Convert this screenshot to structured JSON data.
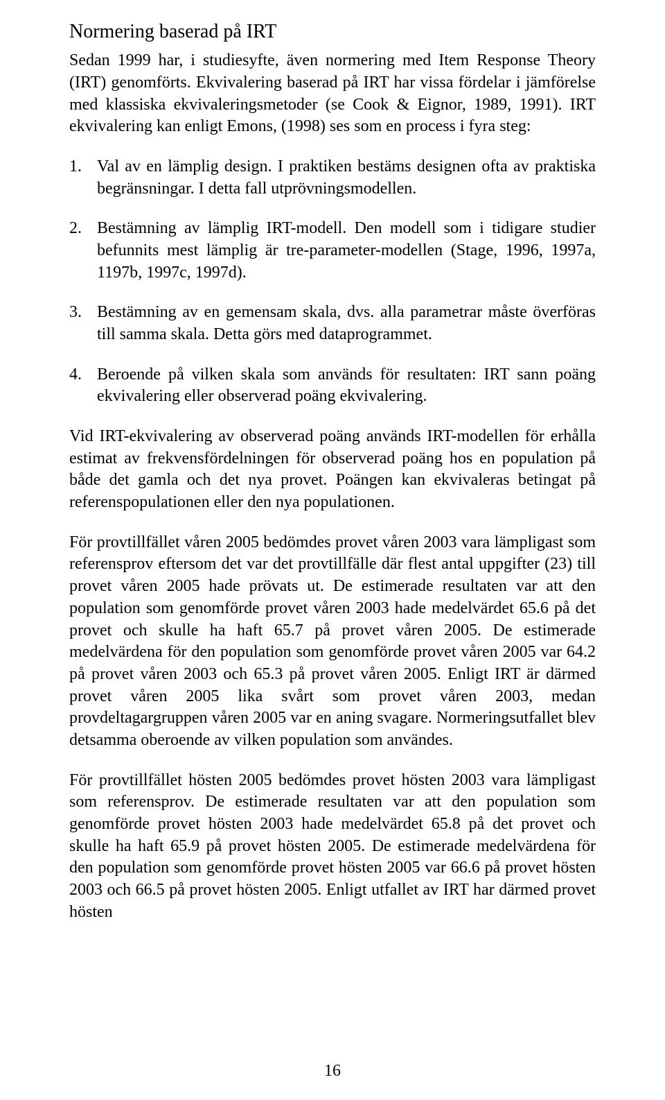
{
  "heading": "Normering baserad på IRT",
  "intro": "Sedan 1999 har, i studiesyfte, även normering med Item Response Theory (IRT) genomförts. Ekvivalering baserad på IRT har vissa fördelar i jämförelse med klassiska ekvivaleringsmetoder (se Cook & Eignor, 1989, 1991). IRT ekvivalering kan enligt Emons, (1998) ses som en process i fyra steg:",
  "list": [
    {
      "num": "1.",
      "text": "Val av en lämplig design. I praktiken bestäms designen ofta av praktiska begränsningar. I detta fall utprövningsmodellen."
    },
    {
      "num": "2.",
      "text": "Bestämning av lämplig IRT-modell. Den modell som i tidigare studier befunnits mest lämplig är tre-parameter-modellen (Stage, 1996, 1997a, 1197b, 1997c, 1997d)."
    },
    {
      "num": "3.",
      "text": "Bestämning av en gemensam skala, dvs. alla parametrar måste överföras till samma skala. Detta görs med dataprogrammet."
    },
    {
      "num": "4.",
      "text": "Beroende på vilken skala som används för resultaten: IRT sann poäng ekvivalering eller observerad poäng ekvivalering."
    }
  ],
  "p1": "Vid IRT-ekvivalering av observerad poäng används IRT-modellen för erhålla estimat av frekvensfördelningen för observerad poäng hos en population på både det gamla och det nya provet. Poängen kan ekvivaleras betingat på referenspopulationen eller den nya populationen.",
  "p2": "För provtillfället våren 2005 bedömdes provet våren 2003 vara lämpligast som referensprov eftersom det var det provtillfälle där flest antal uppgifter (23) till provet våren 2005 hade prövats ut. De estimerade resultaten var att den population som genomförde provet våren 2003 hade medelvärdet 65.6 på det provet och skulle ha haft 65.7 på provet våren 2005. De estimerade medelvärdena för den population som genomförde provet våren 2005 var 64.2 på provet våren 2003 och 65.3 på provet våren 2005. Enligt IRT är därmed provet våren 2005 lika svårt som provet våren 2003, medan provdeltagargruppen våren 2005 var en aning svagare. Normeringsutfallet blev detsamma oberoende av vilken population som användes.",
  "p3": "För provtillfället hösten 2005 bedömdes provet hösten 2003 vara lämpligast som referensprov. De estimerade resultaten var att den population som genomförde provet hösten 2003 hade medelvärdet 65.8 på det provet och skulle ha haft 65.9 på provet hösten 2005. De estimerade medelvärdena för den population som genomförde provet hösten 2005 var 66.6 på provet hösten 2003 och 66.5 på provet hösten 2005. Enligt utfallet av IRT har därmed provet hösten",
  "page_number": "16"
}
